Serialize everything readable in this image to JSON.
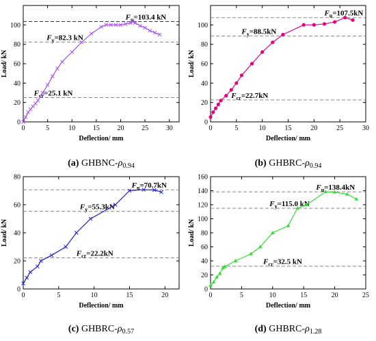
{
  "chart_data": [
    {
      "type": "line",
      "caption": {
        "letter": "(a)",
        "name": "GHBNC-",
        "rho": "ρ",
        "sub": "0.94"
      },
      "xlabel": "Deflection/ mm",
      "ylabel": "Load/ kN",
      "xlim": [
        0,
        32
      ],
      "ylim": [
        0,
        120
      ],
      "xticks": [
        0,
        5,
        10,
        15,
        20,
        25,
        30
      ],
      "yticks": [
        0,
        20,
        40,
        60,
        80,
        100
      ],
      "color": "#a64dff",
      "marker": "x",
      "x": [
        0,
        0.5,
        1,
        1.5,
        2,
        2.5,
        3,
        4,
        5,
        6,
        7,
        8,
        10,
        12,
        14,
        16,
        17,
        18,
        19,
        20,
        21,
        22,
        22.5,
        23,
        24,
        25,
        26,
        27,
        28
      ],
      "y": [
        0,
        5,
        10,
        13,
        16,
        19,
        22,
        30,
        38,
        47,
        55,
        62,
        72,
        82,
        91,
        98,
        100,
        100,
        100,
        100,
        101,
        102,
        103.4,
        102,
        99,
        97,
        94,
        92,
        90
      ],
      "refs": [
        {
          "value": 103.4,
          "label": "F",
          "sub": "u",
          "text": "=103.4 kN"
        },
        {
          "value": 82.3,
          "label": "F",
          "sub": "y",
          "text": "=82.3 kN"
        },
        {
          "value": 25.1,
          "label": "F",
          "sub": "cr",
          "text": "=25.1 kN"
        }
      ]
    },
    {
      "type": "line",
      "caption": {
        "letter": "(b)",
        "name": "GHBRC-",
        "rho": "ρ",
        "sub": "0.94"
      },
      "xlabel": "Deflection/ mm",
      "ylabel": "Load/ kN",
      "xlim": [
        0,
        30
      ],
      "ylim": [
        0,
        120
      ],
      "xticks": [
        0,
        5,
        10,
        15,
        20,
        25,
        30
      ],
      "yticks": [
        0,
        20,
        40,
        60,
        80,
        100
      ],
      "color": "#e6007e",
      "marker": "circle",
      "x": [
        0,
        0.5,
        1,
        1.5,
        2,
        3,
        4,
        5,
        6,
        8,
        10,
        12,
        14,
        18,
        20,
        22,
        24,
        26,
        27.5
      ],
      "y": [
        5,
        10,
        14,
        18,
        22,
        27,
        33,
        40,
        48,
        60,
        72,
        82,
        90,
        100,
        100,
        101,
        103,
        107.5,
        105
      ],
      "refs": [
        {
          "value": 107.5,
          "label": "F",
          "sub": "u",
          "text": "=107.5kN"
        },
        {
          "value": 88.5,
          "label": "F",
          "sub": "y",
          "text": "=88.5kN"
        },
        {
          "value": 22.7,
          "label": "F",
          "sub": "cr",
          "text": "=22.7kN"
        }
      ]
    },
    {
      "type": "line",
      "caption": {
        "letter": "(c)",
        "name": "GHBRC-",
        "rho": "ρ",
        "sub": "0.57"
      },
      "xlabel": "Deflection/ mm",
      "ylabel": "Load/ kN",
      "xlim": [
        0,
        22
      ],
      "ylim": [
        0,
        80
      ],
      "xticks": [
        0,
        5,
        10,
        15,
        20
      ],
      "yticks": [
        0,
        20,
        40,
        60,
        80
      ],
      "color": "#1f1fdc",
      "marker": "x",
      "x": [
        0,
        0.5,
        1,
        2,
        2.5,
        4,
        6,
        7.5,
        9.5,
        13,
        15,
        17,
        18.5,
        19.5
      ],
      "y": [
        4,
        8,
        12,
        16,
        20,
        24,
        30,
        40,
        50,
        60,
        70,
        70.7,
        70.5,
        69
      ],
      "refs": [
        {
          "value": 70.7,
          "label": "F",
          "sub": "u",
          "text": "=70.7kN"
        },
        {
          "value": 55.3,
          "label": "F",
          "sub": "y",
          "text": "=55.3kN"
        },
        {
          "value": 22.2,
          "label": "F",
          "sub": "cr",
          "text": "=22.2kN"
        }
      ]
    },
    {
      "type": "line",
      "caption": {
        "letter": "(d)",
        "name": "GHBRC-",
        "rho": "ρ",
        "sub": "1.28"
      },
      "xlabel": "Deflection/ mm",
      "ylabel": "Load/ kN",
      "xlim": [
        0,
        25
      ],
      "ylim": [
        0,
        160
      ],
      "xticks": [
        0,
        5,
        10,
        15,
        20,
        25
      ],
      "yticks": [
        0,
        20,
        40,
        60,
        80,
        100,
        120,
        140,
        160
      ],
      "color": "#33dd33",
      "marker": "triangle",
      "x": [
        0,
        0.5,
        1,
        1.5,
        2,
        2.3,
        4,
        6.5,
        8,
        10,
        12.5,
        14,
        15.5,
        18.5,
        20,
        22,
        23.5
      ],
      "y": [
        5,
        10,
        17,
        22,
        30,
        32,
        40,
        50,
        60,
        80,
        90,
        115,
        120,
        138.4,
        138,
        135,
        128
      ],
      "refs": [
        {
          "value": 138.4,
          "label": "F",
          "sub": "u",
          "text": "=138.4kN"
        },
        {
          "value": 115.0,
          "label": "F",
          "sub": "y",
          "text": "=115.0 kN"
        },
        {
          "value": 32.5,
          "label": "F",
          "sub": "cr",
          "text": "=32.5 kN"
        }
      ]
    }
  ]
}
